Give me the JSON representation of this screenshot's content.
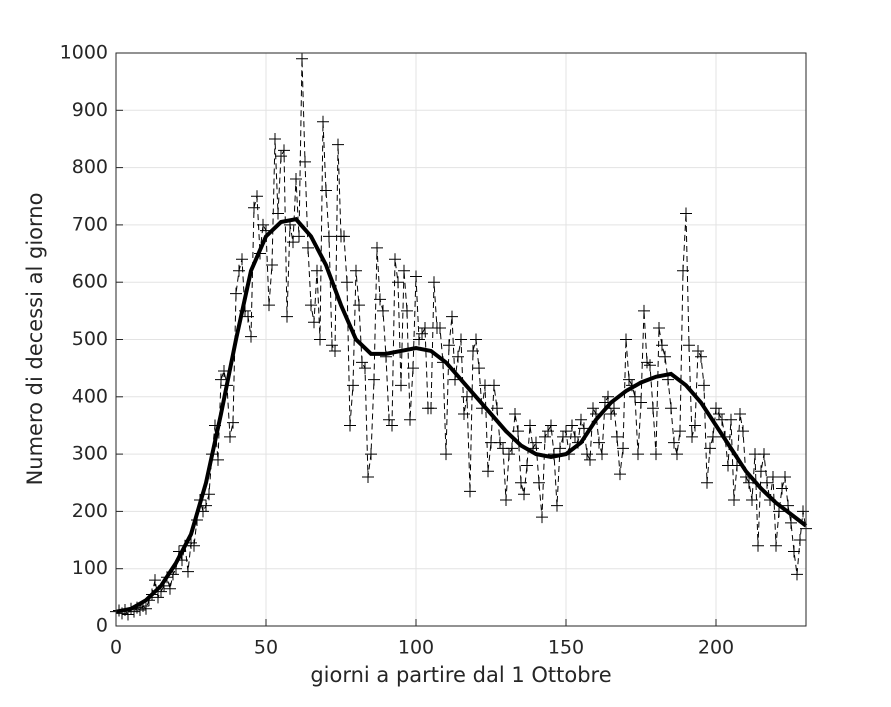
{
  "chart_data": {
    "type": "line",
    "xlabel": "giorni a partire dal 1 Ottobre",
    "ylabel": "Numero di decessi al giorno",
    "xlim": [
      0,
      230
    ],
    "ylim": [
      0,
      1000
    ],
    "xticks": [
      0,
      50,
      100,
      150,
      200
    ],
    "yticks": [
      0,
      100,
      200,
      300,
      400,
      500,
      600,
      700,
      800,
      900,
      1000
    ],
    "grid": true,
    "series": [
      {
        "color": "#000000",
        "style": "dashed-plus",
        "x": [
          0,
          1,
          2,
          3,
          4,
          5,
          6,
          7,
          8,
          9,
          10,
          11,
          12,
          13,
          14,
          15,
          16,
          17,
          18,
          19,
          20,
          21,
          22,
          23,
          24,
          25,
          26,
          27,
          28,
          29,
          30,
          31,
          32,
          33,
          34,
          35,
          36,
          37,
          38,
          39,
          40,
          41,
          42,
          43,
          44,
          45,
          46,
          47,
          48,
          49,
          50,
          51,
          52,
          53,
          54,
          55,
          56,
          57,
          58,
          59,
          60,
          61,
          62,
          63,
          64,
          65,
          66,
          67,
          68,
          69,
          70,
          71,
          72,
          73,
          74,
          75,
          76,
          77,
          78,
          79,
          80,
          81,
          82,
          83,
          84,
          85,
          86,
          87,
          88,
          89,
          90,
          91,
          92,
          93,
          94,
          95,
          96,
          97,
          98,
          99,
          100,
          101,
          102,
          103,
          104,
          105,
          106,
          107,
          108,
          109,
          110,
          111,
          112,
          113,
          114,
          115,
          116,
          117,
          118,
          119,
          120,
          121,
          122,
          123,
          124,
          125,
          126,
          127,
          128,
          129,
          130,
          131,
          132,
          133,
          134,
          135,
          136,
          137,
          138,
          139,
          140,
          141,
          142,
          143,
          144,
          145,
          146,
          147,
          148,
          149,
          150,
          151,
          152,
          153,
          154,
          155,
          156,
          157,
          158,
          159,
          160,
          161,
          162,
          163,
          164,
          165,
          166,
          167,
          168,
          169,
          170,
          171,
          172,
          173,
          174,
          175,
          176,
          177,
          178,
          179,
          180,
          181,
          182,
          183,
          184,
          185,
          186,
          187,
          188,
          189,
          190,
          191,
          192,
          193,
          194,
          195,
          196,
          197,
          198,
          199,
          200,
          201,
          202,
          203,
          204,
          205,
          206,
          207,
          208,
          209,
          210,
          211,
          212,
          213,
          214,
          215,
          216,
          217,
          218,
          219,
          220,
          221,
          222,
          223,
          224,
          225,
          226,
          227,
          228,
          229,
          230
        ],
        "values": [
          25,
          27,
          22,
          28,
          20,
          30,
          25,
          32,
          28,
          35,
          30,
          45,
          55,
          80,
          50,
          60,
          70,
          85,
          65,
          90,
          100,
          130,
          115,
          140,
          95,
          145,
          140,
          185,
          220,
          200,
          210,
          230,
          300,
          350,
          290,
          430,
          445,
          420,
          330,
          355,
          580,
          620,
          640,
          550,
          540,
          505,
          730,
          750,
          650,
          700,
          690,
          560,
          630,
          850,
          720,
          820,
          830,
          540,
          700,
          670,
          780,
          680,
          990,
          810,
          660,
          560,
          530,
          620,
          500,
          880,
          760,
          680,
          490,
          480,
          840,
          680,
          680,
          600,
          350,
          420,
          620,
          560,
          460,
          450,
          260,
          300,
          430,
          660,
          570,
          550,
          470,
          360,
          350,
          640,
          600,
          420,
          620,
          550,
          360,
          450,
          610,
          500,
          510,
          520,
          380,
          380,
          600,
          520,
          520,
          460,
          300,
          490,
          540,
          430,
          470,
          500,
          370,
          400,
          235,
          480,
          500,
          450,
          380,
          420,
          270,
          320,
          420,
          380,
          320,
          310,
          220,
          300,
          310,
          370,
          340,
          250,
          230,
          280,
          350,
          310,
          320,
          250,
          190,
          330,
          340,
          350,
          300,
          210,
          310,
          330,
          340,
          300,
          350,
          330,
          320,
          360,
          345,
          300,
          290,
          380,
          370,
          320,
          300,
          390,
          400,
          370,
          380,
          330,
          265,
          310,
          500,
          430,
          420,
          400,
          300,
          390,
          550,
          460,
          455,
          380,
          300,
          520,
          490,
          470,
          430,
          380,
          320,
          300,
          340,
          620,
          720,
          490,
          330,
          350,
          480,
          470,
          420,
          250,
          310,
          330,
          380,
          370,
          360,
          330,
          280,
          360,
          220,
          280,
          370,
          340,
          260,
          250,
          220,
          300,
          140,
          270,
          300,
          250,
          220,
          260,
          140,
          200,
          240,
          260,
          210,
          180,
          130,
          90,
          150,
          200,
          170
        ]
      },
      {
        "color": "#000000",
        "style": "solid-thick",
        "x": [
          0,
          5,
          10,
          15,
          20,
          25,
          30,
          35,
          40,
          45,
          50,
          55,
          60,
          65,
          70,
          75,
          80,
          85,
          90,
          95,
          100,
          105,
          110,
          115,
          120,
          125,
          130,
          135,
          140,
          145,
          150,
          155,
          160,
          165,
          170,
          175,
          180,
          185,
          190,
          195,
          200,
          205,
          210,
          215,
          220,
          225,
          230
        ],
        "values": [
          25,
          30,
          45,
          70,
          110,
          160,
          250,
          370,
          500,
          620,
          680,
          705,
          710,
          680,
          630,
          560,
          500,
          475,
          475,
          480,
          485,
          480,
          460,
          430,
          400,
          370,
          340,
          315,
          300,
          295,
          300,
          320,
          360,
          390,
          410,
          425,
          435,
          440,
          420,
          390,
          350,
          310,
          270,
          240,
          215,
          195,
          175
        ]
      }
    ]
  }
}
